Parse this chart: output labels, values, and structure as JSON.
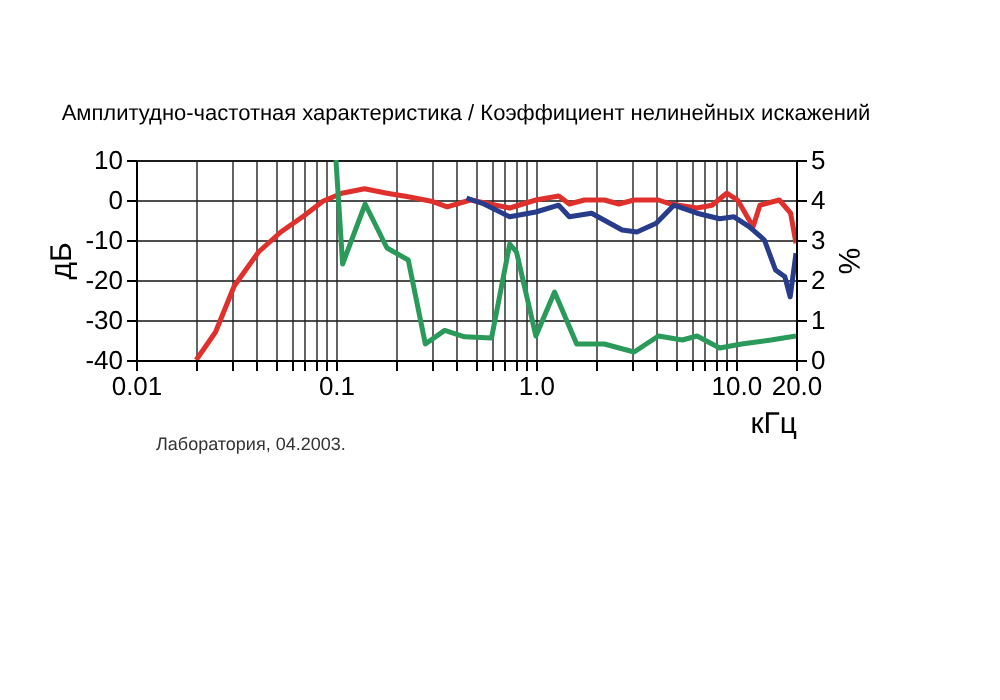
{
  "chart_data": {
    "type": "line",
    "title": "Амплитудно-частотная характеристика / Коэффициент нелинейных искажений",
    "xlabel": "кГц",
    "ylabel": "дБ",
    "y2label": "%",
    "annotations": [
      "Лаборатория, 04.2003."
    ],
    "series": [
      {
        "color": "#e0302c",
        "x": [
          0.02,
          0.025,
          0.031,
          0.041,
          0.053,
          0.069,
          0.086,
          0.107,
          0.139,
          0.18,
          0.23,
          0.3,
          0.36,
          0.47,
          0.74,
          1.0,
          1.3,
          1.47,
          1.75,
          2.2,
          2.6,
          3.1,
          4.1,
          4.7,
          6.4,
          7.6,
          9.0,
          10.2,
          12.2,
          13.2,
          16.5,
          18.8,
          20.0
        ],
        "values": [
          -40,
          -33,
          -21.5,
          -13,
          -8,
          -4,
          -0.3,
          1.7,
          2.8,
          1.7,
          0.8,
          -0.3,
          -1.7,
          0,
          -2,
          0,
          1,
          -1,
          0,
          0,
          -1,
          0,
          0,
          -1,
          -2,
          -1.3,
          1.7,
          0,
          -6.7,
          -1.3,
          0,
          -3.3,
          -10.8
        ]
      },
      {
        "color": "#283c8c",
        "x": [
          0.45,
          0.55,
          0.74,
          1.0,
          1.3,
          1.47,
          1.9,
          2.7,
          3.2,
          4.0,
          4.9,
          6.4,
          8.3,
          9.8,
          11.7,
          13.9,
          15.8,
          17.6,
          18.7,
          20.0
        ],
        "values": [
          0.5,
          -1,
          -4.2,
          -3,
          -1.3,
          -4.2,
          -3.3,
          -7.5,
          -8,
          -5.8,
          -1.3,
          -3.3,
          -4.7,
          -4.2,
          -6.7,
          -10,
          -17.5,
          -19.2,
          -24.2,
          -13.3
        ]
      },
      {
        "color": "#2a9a5a",
        "axis": "y2",
        "x": [
          0.1,
          0.108,
          0.14,
          0.18,
          0.23,
          0.28,
          0.35,
          0.44,
          0.6,
          0.74,
          0.8,
          1.0,
          1.24,
          1.6,
          2.2,
          3.1,
          4.1,
          5.4,
          6.4,
          8.3,
          10.7,
          15.0,
          20.0
        ],
        "values": [
          5,
          2.4,
          3.9,
          2.8,
          2.5,
          0.4,
          0.74,
          0.58,
          0.55,
          2.9,
          2.7,
          0.6,
          1.7,
          0.4,
          0.4,
          0.2,
          0.6,
          0.5,
          0.6,
          0.3,
          0.4,
          0.5,
          0.6
        ]
      }
    ],
    "xlim": [
      0.01,
      20
    ],
    "xticks": [
      {
        "value": 0.01,
        "label": "0.01"
      },
      {
        "value": 0.02,
        "label": null
      },
      {
        "value": 0.03,
        "label": null
      },
      {
        "value": 0.04,
        "label": null
      },
      {
        "value": 0.05,
        "label": null
      },
      {
        "value": 0.06,
        "label": null
      },
      {
        "value": 0.07,
        "label": null
      },
      {
        "value": 0.08,
        "label": null
      },
      {
        "value": 0.09,
        "label": null
      },
      {
        "value": 0.1,
        "label": "0.1"
      },
      {
        "value": 0.2,
        "label": null
      },
      {
        "value": 0.3,
        "label": null
      },
      {
        "value": 0.4,
        "label": null
      },
      {
        "value": 0.5,
        "label": null
      },
      {
        "value": 0.6,
        "label": null
      },
      {
        "value": 0.7,
        "label": null
      },
      {
        "value": 0.8,
        "label": null
      },
      {
        "value": 0.9,
        "label": null
      },
      {
        "value": 1,
        "label": "1.0"
      },
      {
        "value": 2,
        "label": null
      },
      {
        "value": 3,
        "label": null
      },
      {
        "value": 4,
        "label": null
      },
      {
        "value": 5,
        "label": null
      },
      {
        "value": 6,
        "label": null
      },
      {
        "value": 7,
        "label": null
      },
      {
        "value": 8,
        "label": null
      },
      {
        "value": 9,
        "label": null
      },
      {
        "value": 10,
        "label": "10.0"
      },
      {
        "value": 20,
        "label": "20.0"
      }
    ],
    "log": "x",
    "ylim": [
      -40,
      10
    ],
    "yticks": [
      -40,
      -30,
      -20,
      -10,
      0,
      10
    ],
    "y2lim": [
      0,
      5
    ],
    "y2ticks": [
      0,
      1,
      2,
      3,
      4,
      5
    ],
    "grid": true
  }
}
